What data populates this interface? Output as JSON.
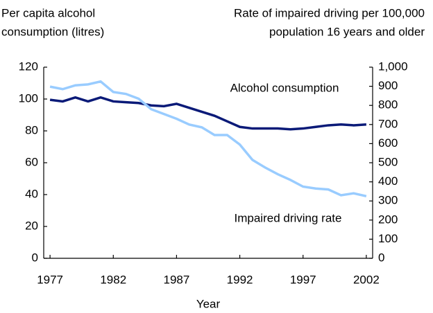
{
  "chart_data": {
    "type": "line",
    "x": [
      1977,
      1978,
      1979,
      1980,
      1981,
      1982,
      1983,
      1984,
      1985,
      1986,
      1987,
      1988,
      1989,
      1990,
      1991,
      1992,
      1993,
      1994,
      1995,
      1996,
      1997,
      1998,
      1999,
      2000,
      2001,
      2002
    ],
    "series": [
      {
        "name": "Alcohol consumption",
        "color": "#0a1a78",
        "axis": "y",
        "values": [
          99.5,
          98.5,
          101,
          98.5,
          101,
          98.5,
          98,
          97.5,
          96,
          95.5,
          97,
          94.5,
          92,
          89.5,
          86,
          82.5,
          81.5,
          81.5,
          81.5,
          81,
          81.5,
          82.5,
          83.5,
          84,
          83.5,
          84
        ]
      },
      {
        "name": "Impaired driving rate",
        "color": "#99ccff",
        "axis": "y2",
        "values": [
          898,
          885,
          905,
          910,
          925,
          870,
          860,
          835,
          780,
          755,
          730,
          700,
          685,
          645,
          645,
          595,
          515,
          475,
          440,
          410,
          375,
          365,
          360,
          330,
          340,
          325
        ]
      }
    ],
    "ylabel": [
      "Per capita alcohol",
      "consumption (litres)"
    ],
    "y2label": [
      "Rate of impaired driving per 100,000",
      "population 16 years and older"
    ],
    "xlabel": "Year",
    "xlim": [
      1976.5,
      2002.5
    ],
    "xticks": [
      1977,
      1982,
      1987,
      1992,
      1997,
      2002
    ],
    "ylim": [
      0,
      120
    ],
    "yticks": [
      0,
      20,
      40,
      60,
      80,
      100,
      120
    ],
    "y2lim": [
      0,
      1000
    ],
    "y2ticks": [
      0,
      100,
      200,
      300,
      400,
      500,
      600,
      700,
      800,
      900,
      {
        "value": 1000,
        "label": "1,000"
      }
    ]
  }
}
